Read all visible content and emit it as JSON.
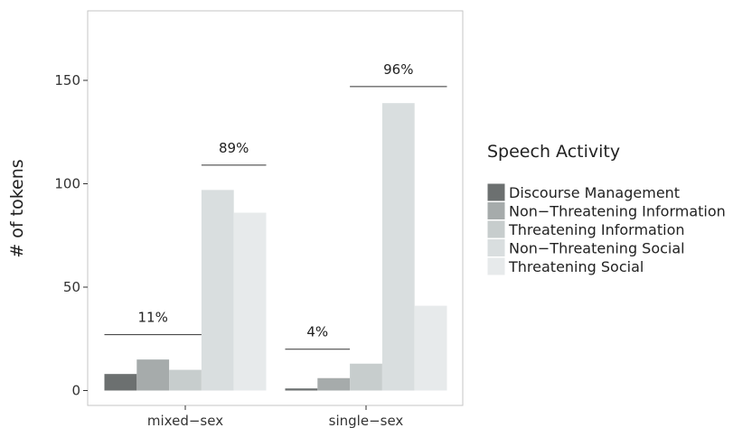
{
  "chart_data": {
    "type": "bar",
    "categories": [
      "mixed−sex",
      "single−sex"
    ],
    "ylabel": "# of tokens",
    "xlabel": "",
    "ylim": [
      0,
      185
    ],
    "yticks": [
      0,
      50,
      100,
      150
    ],
    "grid": false,
    "legend": {
      "title": "Speech Activity",
      "position": "right"
    },
    "series": [
      {
        "name": "Discourse Management",
        "color": "#6c7070",
        "values": [
          8,
          1
        ]
      },
      {
        "name": "Non−Threatening Information",
        "color": "#a6abab",
        "values": [
          15,
          6
        ]
      },
      {
        "name": "Threatening Information",
        "color": "#c7cdcd",
        "values": [
          10,
          13
        ]
      },
      {
        "name": "Non−Threatening Social",
        "color": "#d9dedf",
        "values": [
          97,
          139
        ]
      },
      {
        "name": "Threatening Social",
        "color": "#e7eaeb",
        "values": [
          86,
          41
        ]
      }
    ],
    "annotations": [
      {
        "category": 0,
        "text": "11%",
        "from_series": 0,
        "to_series": 2,
        "y": 27
      },
      {
        "category": 0,
        "text": "89%",
        "from_series": 3,
        "to_series": 4,
        "y": 109
      },
      {
        "category": 1,
        "text": "4%",
        "from_series": 0,
        "to_series": 1,
        "y": 20
      },
      {
        "category": 1,
        "text": "96%",
        "from_series": 2,
        "to_series": 4,
        "y": 147
      }
    ]
  }
}
